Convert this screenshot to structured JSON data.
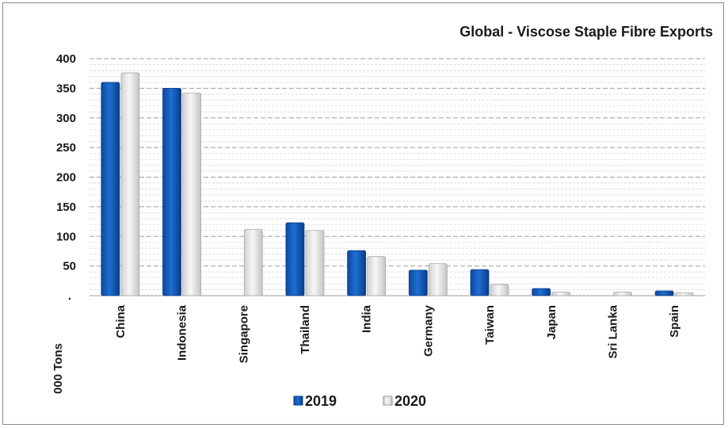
{
  "chart_data": {
    "type": "bar",
    "title": "Global - Viscose Staple Fibre Exports",
    "ylabel": "000 Tons",
    "xlabel": "",
    "ylim": [
      0,
      400
    ],
    "yticks": [
      50,
      100,
      150,
      200,
      250,
      300,
      350,
      400
    ],
    "zero_tick_label": ".",
    "categories": [
      "China",
      "Indonesia",
      "Singapore",
      "Thailand",
      "India",
      "Germany",
      "Taiwan",
      "Japan",
      "Sri Lanka",
      "Spain"
    ],
    "series": [
      {
        "name": "2019",
        "color": "#1565c0",
        "values": [
          360,
          350,
          0,
          123,
          76,
          43,
          44,
          12,
          0,
          8
        ]
      },
      {
        "name": "2020",
        "color": "#e6e6e6",
        "values": [
          376,
          342,
          112,
          110,
          66,
          54,
          19,
          6,
          6,
          5
        ]
      }
    ],
    "legend_position": "bottom",
    "grid": true
  }
}
